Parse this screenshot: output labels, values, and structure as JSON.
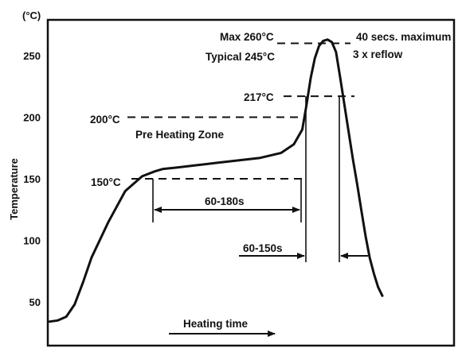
{
  "chart_data": {
    "type": "line",
    "title": "",
    "xlabel": "Heating time",
    "ylabel": "Temperature",
    "yunit": "(°C)",
    "ylim": [
      30,
      290
    ],
    "xlim": [
      0,
      100
    ],
    "yticks": [
      50,
      100,
      150,
      200,
      250
    ],
    "grid": false,
    "legend": "none",
    "curve": {
      "x": [
        0,
        2,
        4,
        6,
        8,
        10,
        14,
        18,
        22,
        25,
        27,
        30,
        35,
        40,
        45,
        50,
        55,
        58,
        60,
        61,
        62,
        63,
        64,
        65,
        66,
        67,
        68,
        69,
        70,
        71,
        72,
        73,
        74,
        75,
        76,
        77,
        78,
        79
      ],
      "y": [
        34,
        35,
        38,
        48,
        66,
        86,
        115,
        140,
        152,
        156,
        158,
        159,
        161,
        163,
        165,
        167,
        171,
        178,
        190,
        210,
        232,
        248,
        258,
        262,
        263,
        261,
        253,
        232,
        210,
        188,
        166,
        146,
        125,
        104,
        86,
        73,
        62,
        55
      ]
    },
    "annotations": {
      "max_label": "Max 260°C",
      "max_right_label": "40 secs. maximum",
      "reflow_label": "3 x reflow",
      "typical_label": "Typical 245°C",
      "label_217": "217°C",
      "label_200": "200°C",
      "preheat_label": "Pre Heating Zone",
      "label_150": "150°C",
      "preheat_time_label": "60-180s",
      "reflow_time_label": "60-150s"
    },
    "colors": {
      "line": "#111111",
      "background": "#ffffff"
    }
  }
}
